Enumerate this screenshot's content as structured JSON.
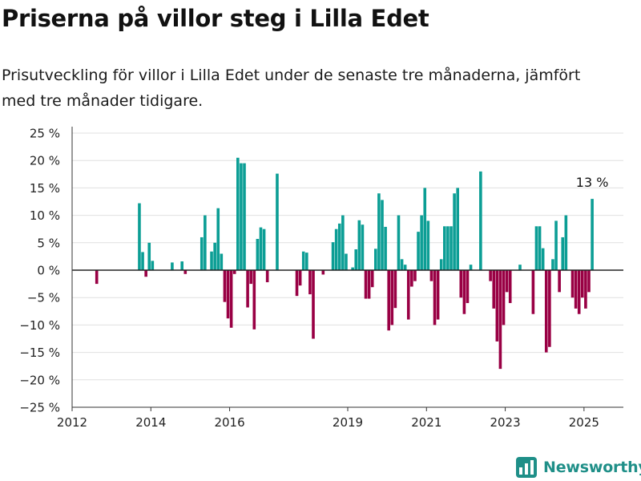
{
  "title": "Priserna på villor steg i Lilla Edet",
  "subtitle": "Prisutveckling för villor i Lilla Edet under de senaste tre månaderna, jämfört med tre månader tidigare.",
  "brand": "Newsworthy",
  "colors": {
    "positive": "#0c9e95",
    "negative": "#990044",
    "grid": "#e0e0e0",
    "zero": "#222222",
    "brand": "#1f8f88"
  },
  "chart_data": {
    "type": "bar",
    "title": "",
    "xlabel": "",
    "ylabel": "",
    "ylim": [
      -25,
      25
    ],
    "xlim": [
      "2012-01",
      "2026-01"
    ],
    "y_ticks": [
      25,
      20,
      15,
      10,
      5,
      0,
      -5,
      -10,
      -15,
      -20,
      -25
    ],
    "y_tick_labels": [
      "25 %",
      "20 %",
      "15 %",
      "10 %",
      "5 %",
      "0 %",
      "−5 %",
      "−10 %",
      "−15 %",
      "−20 %",
      "−25 %"
    ],
    "x_ticks": [
      "2012",
      "2014",
      "2016",
      "2019",
      "2021",
      "2023",
      "2025"
    ],
    "annotation": {
      "x": "2025-03",
      "label": "13 %"
    },
    "series": [
      {
        "values": [
          {
            "x": "2012-08",
            "y": -2.5
          },
          {
            "x": "2013-09",
            "y": 12.2
          },
          {
            "x": "2013-10",
            "y": 3.3
          },
          {
            "x": "2013-11",
            "y": -1.2
          },
          {
            "x": "2013-12",
            "y": 5.0
          },
          {
            "x": "2014-01",
            "y": 1.7
          },
          {
            "x": "2014-07",
            "y": 1.4
          },
          {
            "x": "2014-10",
            "y": 1.6
          },
          {
            "x": "2014-11",
            "y": -0.7
          },
          {
            "x": "2015-04",
            "y": 6.0
          },
          {
            "x": "2015-05",
            "y": 10.0
          },
          {
            "x": "2015-07",
            "y": 3.4
          },
          {
            "x": "2015-08",
            "y": 5.0
          },
          {
            "x": "2015-09",
            "y": 11.3
          },
          {
            "x": "2015-10",
            "y": 3.0
          },
          {
            "x": "2015-11",
            "y": -5.8
          },
          {
            "x": "2015-12",
            "y": -8.8
          },
          {
            "x": "2016-01",
            "y": -10.5
          },
          {
            "x": "2016-02",
            "y": -0.7
          },
          {
            "x": "2016-03",
            "y": 20.5
          },
          {
            "x": "2016-04",
            "y": 19.5
          },
          {
            "x": "2016-05",
            "y": 19.5
          },
          {
            "x": "2016-06",
            "y": -6.8
          },
          {
            "x": "2016-07",
            "y": -2.5
          },
          {
            "x": "2016-08",
            "y": -10.8
          },
          {
            "x": "2016-09",
            "y": 5.7
          },
          {
            "x": "2016-10",
            "y": 7.8
          },
          {
            "x": "2016-11",
            "y": 7.5
          },
          {
            "x": "2016-12",
            "y": -2.2
          },
          {
            "x": "2017-03",
            "y": 17.6
          },
          {
            "x": "2017-09",
            "y": -4.7
          },
          {
            "x": "2017-10",
            "y": -2.8
          },
          {
            "x": "2017-11",
            "y": 3.4
          },
          {
            "x": "2017-12",
            "y": 3.2
          },
          {
            "x": "2018-01",
            "y": -4.4
          },
          {
            "x": "2018-02",
            "y": -12.5
          },
          {
            "x": "2018-05",
            "y": -0.8
          },
          {
            "x": "2018-08",
            "y": 5.1
          },
          {
            "x": "2018-09",
            "y": 7.5
          },
          {
            "x": "2018-10",
            "y": 8.5
          },
          {
            "x": "2018-11",
            "y": 10.0
          },
          {
            "x": "2018-12",
            "y": 3.0
          },
          {
            "x": "2019-02",
            "y": 0.5
          },
          {
            "x": "2019-03",
            "y": 3.8
          },
          {
            "x": "2019-04",
            "y": 9.1
          },
          {
            "x": "2019-05",
            "y": 8.3
          },
          {
            "x": "2019-06",
            "y": -5.2
          },
          {
            "x": "2019-07",
            "y": -5.2
          },
          {
            "x": "2019-08",
            "y": -3.1
          },
          {
            "x": "2019-09",
            "y": 3.9
          },
          {
            "x": "2019-10",
            "y": 14.0
          },
          {
            "x": "2019-11",
            "y": 12.8
          },
          {
            "x": "2019-12",
            "y": 7.9
          },
          {
            "x": "2020-01",
            "y": -11.0
          },
          {
            "x": "2020-02",
            "y": -10.0
          },
          {
            "x": "2020-03",
            "y": -6.9
          },
          {
            "x": "2020-04",
            "y": 10.0
          },
          {
            "x": "2020-05",
            "y": 2.0
          },
          {
            "x": "2020-06",
            "y": 1.0
          },
          {
            "x": "2020-07",
            "y": -9.0
          },
          {
            "x": "2020-08",
            "y": -3.0
          },
          {
            "x": "2020-09",
            "y": -2.0
          },
          {
            "x": "2020-10",
            "y": 7.0
          },
          {
            "x": "2020-11",
            "y": 10.0
          },
          {
            "x": "2020-12",
            "y": 15.0
          },
          {
            "x": "2021-01",
            "y": 9.0
          },
          {
            "x": "2021-02",
            "y": -2.0
          },
          {
            "x": "2021-03",
            "y": -10.0
          },
          {
            "x": "2021-04",
            "y": -9.0
          },
          {
            "x": "2021-05",
            "y": 2.0
          },
          {
            "x": "2021-06",
            "y": 8.0
          },
          {
            "x": "2021-07",
            "y": 8.0
          },
          {
            "x": "2021-08",
            "y": 8.0
          },
          {
            "x": "2021-09",
            "y": 14.0
          },
          {
            "x": "2021-10",
            "y": 15.0
          },
          {
            "x": "2021-11",
            "y": -5.0
          },
          {
            "x": "2021-12",
            "y": -8.0
          },
          {
            "x": "2022-01",
            "y": -6.0
          },
          {
            "x": "2022-02",
            "y": 1.0
          },
          {
            "x": "2022-05",
            "y": 18.0
          },
          {
            "x": "2022-08",
            "y": -2.0
          },
          {
            "x": "2022-09",
            "y": -7.0
          },
          {
            "x": "2022-10",
            "y": -13.0
          },
          {
            "x": "2022-11",
            "y": -18.0
          },
          {
            "x": "2022-12",
            "y": -10.0
          },
          {
            "x": "2023-01",
            "y": -4.0
          },
          {
            "x": "2023-02",
            "y": -6.0
          },
          {
            "x": "2023-05",
            "y": 1.0
          },
          {
            "x": "2023-09",
            "y": -8.0
          },
          {
            "x": "2023-10",
            "y": 8.0
          },
          {
            "x": "2023-11",
            "y": 8.0
          },
          {
            "x": "2023-12",
            "y": 4.0
          },
          {
            "x": "2024-01",
            "y": -15.0
          },
          {
            "x": "2024-02",
            "y": -14.0
          },
          {
            "x": "2024-03",
            "y": 2.0
          },
          {
            "x": "2024-04",
            "y": 9.0
          },
          {
            "x": "2024-05",
            "y": -4.0
          },
          {
            "x": "2024-06",
            "y": 6.0
          },
          {
            "x": "2024-07",
            "y": 10.0
          },
          {
            "x": "2024-09",
            "y": -5.0
          },
          {
            "x": "2024-10",
            "y": -7.0
          },
          {
            "x": "2024-11",
            "y": -8.0
          },
          {
            "x": "2024-12",
            "y": -5.0
          },
          {
            "x": "2025-01",
            "y": -7.0
          },
          {
            "x": "2025-02",
            "y": -4.0
          },
          {
            "x": "2025-03",
            "y": 13.0
          }
        ]
      }
    ]
  }
}
